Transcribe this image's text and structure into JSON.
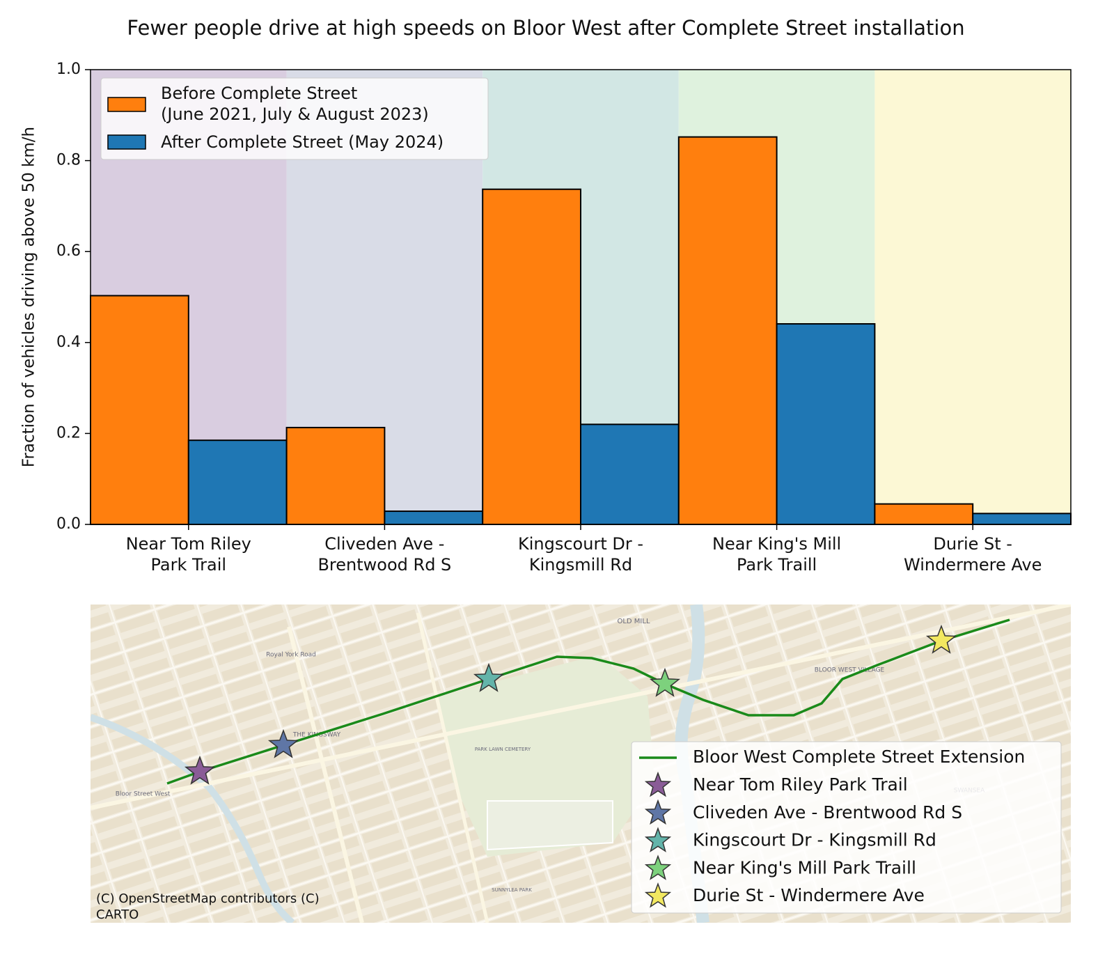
{
  "chart_data": {
    "type": "bar",
    "title": "Fewer people drive at high speeds on Bloor West after Complete Street installation",
    "y_label": "Fraction of vehicles driving above 50 km/h",
    "categories": [
      "Near Tom Riley\nPark Trail",
      "Cliveden Ave -\nBrentwood Rd S",
      "Kingscourt Dr -\nKingsmill Rd",
      "Near King's Mill\nPark Traill",
      "Durie St -\nWindermere Ave"
    ],
    "category_backgrounds": [
      "#d9cde0",
      "#d9dce7",
      "#d2e7e4",
      "#dff2de",
      "#fcf8d5"
    ],
    "series": [
      {
        "name": "Before Complete Street\n(June 2021, July & August 2023)",
        "color": "#ff7f0e",
        "values": [
          0.503,
          0.213,
          0.737,
          0.852,
          0.045
        ]
      },
      {
        "name": "After Complete Street (May 2024)",
        "color": "#1f77b4",
        "values": [
          0.185,
          0.029,
          0.22,
          0.441,
          0.024
        ]
      }
    ],
    "ylim": [
      0,
      1
    ],
    "yticks": [
      {
        "value": 0,
        "label": "0.0"
      },
      0.2,
      0.4,
      0.6,
      0.8,
      {
        "value": 1,
        "label": "1.0"
      }
    ],
    "legend": "upper left"
  },
  "map": {
    "route_label": "Bloor West Complete Street Extension",
    "route_color": "#1a8a1a",
    "sites": [
      {
        "name": "Near Tom Riley Park Trail",
        "color": "#8a5c97"
      },
      {
        "name": "Cliveden Ave - Brentwood Rd S",
        "color": "#5f76a6"
      },
      {
        "name": "Kingscourt Dr - Kingsmill Rd",
        "color": "#63b4aa"
      },
      {
        "name": "Near King's Mill Park Traill",
        "color": "#7dd17d"
      },
      {
        "name": "Durie St - Windermere Ave",
        "color": "#f2e860"
      }
    ],
    "place_labels": [
      "OLD MILL",
      "BLOOR WEST VILLAGE",
      "THE KINGSWAY",
      "PARK LAWN CEMETERY",
      "SWANSEA",
      "Bloor Street West",
      "Royal York Road",
      "SUNNYLEA PARK"
    ],
    "attribution": "(C) OpenStreetMap contributors (C)\nCARTO"
  }
}
